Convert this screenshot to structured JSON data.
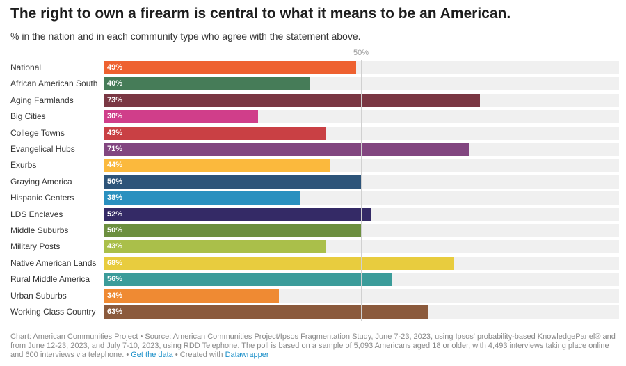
{
  "chart_data": {
    "type": "bar",
    "orientation": "horizontal",
    "title": "The right to own a firearm is central to what it means to be an American.",
    "subtitle": "% in the nation and in each community type who agree with the statement above.",
    "xlim": [
      0,
      100
    ],
    "reference_line": {
      "value": 50,
      "label": "50%"
    },
    "categories": [
      "National",
      "African American South",
      "Aging Farmlands",
      "Big Cities",
      "College Towns",
      "Evangelical Hubs",
      "Exurbs",
      "Graying America",
      "Hispanic Centers",
      "LDS Enclaves",
      "Middle Suburbs",
      "Military Posts",
      "Native American Lands",
      "Rural Middle America",
      "Urban Suburbs",
      "Working Class Country"
    ],
    "values": [
      49,
      40,
      73,
      30,
      43,
      71,
      44,
      50,
      38,
      52,
      50,
      43,
      68,
      56,
      34,
      63
    ],
    "colors": [
      "#ee6130",
      "#467c58",
      "#7a3743",
      "#d03e8a",
      "#c94044",
      "#824680",
      "#fbb93d",
      "#2d5479",
      "#2a90bf",
      "#342a66",
      "#6c8f3f",
      "#aabf4a",
      "#e8cc3e",
      "#3b9c9a",
      "#ef8a33",
      "#8b5a3c"
    ]
  },
  "footer": {
    "text": "Chart: American Communities Project • Source: American Communities Project/Ipsos Fragmentation Study, June 7-23, 2023, using Ipsos' probability-based KnowledgePanel® and from June 12-23, 2023, and July 7-10, 2023, using RDD Telephone. The poll is based on a sample of 5,093 Americans aged 18 or older, with 4,493 interviews taking place online and 600 interviews via telephone. • ",
    "get_data": "Get the data",
    "created": " • Created with ",
    "datawrapper": "Datawrapper"
  }
}
